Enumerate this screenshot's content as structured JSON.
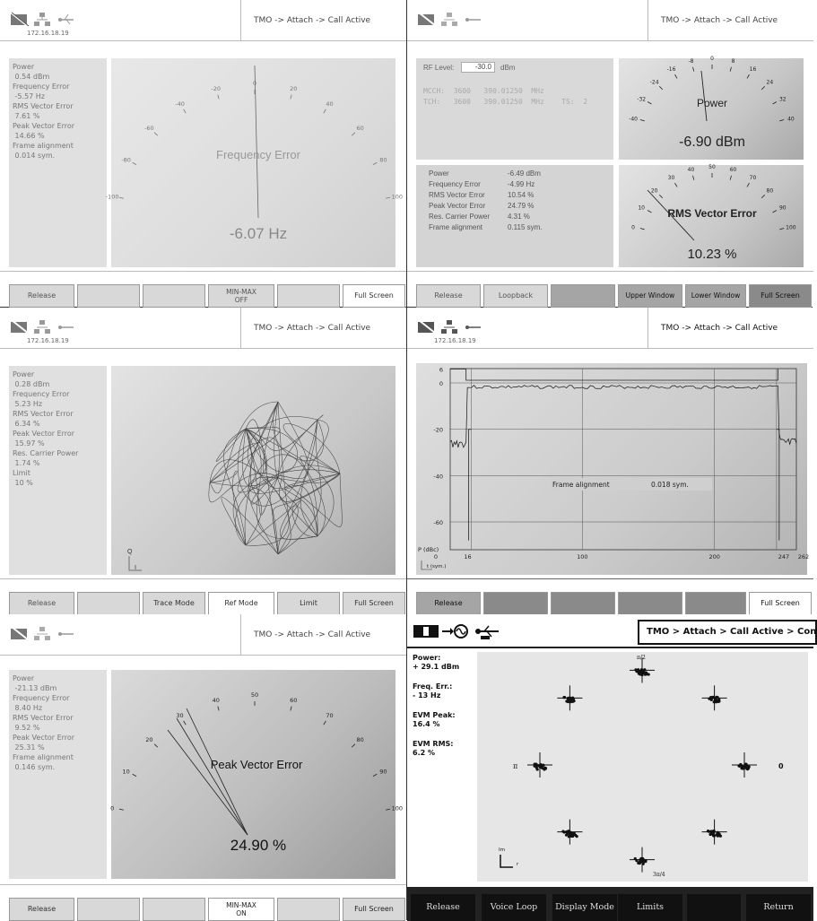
{
  "common": {
    "ip": "172.16.18.19",
    "status": "TMO -> Attach -> Call Active"
  },
  "p1": {
    "readings": [
      "Power",
      " 0.54 dBm",
      "Frequency Error",
      " -5.57 Hz",
      "RMS Vector Error",
      " 7.61 %",
      "Peak Vector Error",
      " 14.66 %",
      "Frame alignment",
      " 0.014 sym."
    ],
    "meter_title": "Frequency Error",
    "meter_value": "-6.07 Hz",
    "scale": [
      "-100",
      "-80",
      "-60",
      "-40",
      "-20",
      "0",
      "20",
      "40",
      "60",
      "80",
      "100"
    ],
    "buttons": [
      "Release",
      "",
      "",
      "MIN-MAX",
      "OFF",
      "",
      "Full Screen"
    ]
  },
  "p2": {
    "rf_label": "RF Level:",
    "rf_value": "-30.0",
    "rf_unit": "dBm",
    "mcch": "MCCH:  3600   390.01250  MHz",
    "tch": "TCH:   3600   390.01250  MHz    TS:  2",
    "power_title": "Power",
    "power_value": "-6.90 dBm",
    "power_scale": [
      "-40",
      "-32",
      "-24",
      "-16",
      "-8",
      "0",
      "8",
      "16",
      "24",
      "32",
      "40"
    ],
    "readings_labels": [
      "Power",
      "Frequency Error",
      "RMS Vector Error",
      "Peak Vector Error",
      "Res. Carrier Power",
      "Frame alignment"
    ],
    "readings_values": [
      "-6.49 dBm",
      "-4.99 Hz",
      "10.54 %",
      "24.79 %",
      "4.31 %",
      "0.115 sym."
    ],
    "rms_title": "RMS Vector Error",
    "rms_value": "10.23 %",
    "rms_scale": [
      "0",
      "10",
      "20",
      "30",
      "40",
      "50",
      "60",
      "70",
      "80",
      "90",
      "100"
    ],
    "buttons": [
      "Release",
      "Loopback",
      "",
      "Upper Window",
      "Lower Window",
      "Full Screen"
    ]
  },
  "p3": {
    "readings": [
      "Power",
      " 0.28 dBm",
      "Frequency Error",
      " 5.23 Hz",
      "RMS Vector Error",
      " 6.34 %",
      "Peak Vector Error",
      " 15.97 %",
      "Res. Carrier Power",
      " 1.74 %",
      "Limit",
      " 10 %"
    ],
    "q_label": "Q",
    "i_label": "I",
    "buttons": [
      "Release",
      "",
      "Trace Mode",
      "Ref Mode",
      "Limit",
      "Full Screen"
    ]
  },
  "p4": {
    "y_ticks": [
      "6",
      "0",
      "-20",
      "-40",
      "-60"
    ],
    "x_ticks": [
      "0",
      "16",
      "100",
      "200",
      "247",
      "262"
    ],
    "ylabel": "P (dBc)",
    "xlabel": "t (sym.)",
    "frame_label": "Frame alignment",
    "frame_value": "0.018 sym.",
    "buttons": [
      "Release",
      "",
      "",
      "",
      "",
      "Full Screen"
    ]
  },
  "p5": {
    "readings": [
      "Power",
      " -21.13 dBm",
      "Frequency Error",
      " 8.40 Hz",
      "RMS Vector Error",
      " 9.52 %",
      "Peak Vector Error",
      " 25.31 %",
      "Frame alignment",
      " 0.146 sym."
    ],
    "meter_title": "Peak Vector Error",
    "meter_value": "24.90 %",
    "scale": [
      "0",
      "10",
      "20",
      "30",
      "40",
      "50",
      "60",
      "70",
      "80",
      "90",
      "100"
    ],
    "buttons": [
      "Release",
      "",
      "",
      "MIN-MAX",
      "ON",
      "",
      "Full Screen"
    ]
  },
  "p6": {
    "status": "TMO > Attach > Call Active > Con",
    "labels": [
      "Power:",
      "+ 29.1 dBm",
      "Freq. Err.:",
      "- 13  Hz",
      "EVM Peak:",
      "16.4  %",
      "EVM RMS:",
      "6.2  %"
    ],
    "pi": "π",
    "zero": "0",
    "pi2": "π/2",
    "pi34": "3π/4",
    "im": "Im",
    "re": "r",
    "buttons": [
      "Release",
      "Voice Loop",
      "Display Mode",
      "Limits",
      "",
      "Return"
    ]
  }
}
